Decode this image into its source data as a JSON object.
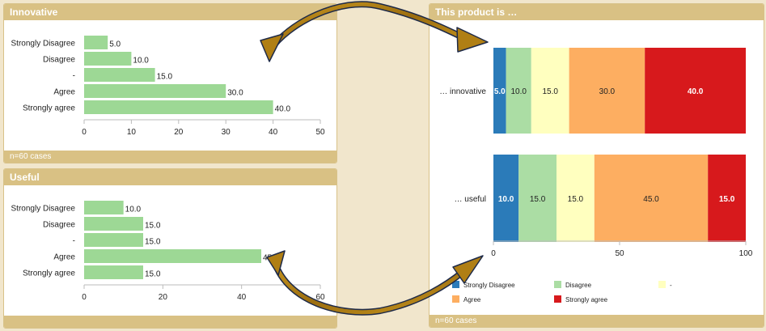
{
  "panels": {
    "innovative": {
      "title": "Innovative",
      "footer": "n=60 cases"
    },
    "useful": {
      "title": "Useful",
      "footer": ""
    },
    "product": {
      "title": "This product is …",
      "footer": "n=60 cases"
    }
  },
  "chart_data": [
    {
      "type": "bar",
      "orientation": "horizontal",
      "title": "Innovative",
      "categories": [
        "Strongly Disagree",
        "Disagree",
        "-",
        "Agree",
        "Strongly agree"
      ],
      "values": [
        5.0,
        10.0,
        15.0,
        30.0,
        40.0
      ],
      "value_labels": [
        "5.0",
        "10.0",
        "15.0",
        "30.0",
        "40.0"
      ],
      "xlim": [
        0,
        50
      ],
      "xticks": [
        0,
        10,
        20,
        30,
        40,
        50
      ],
      "bar_color": "#9dd895",
      "grid": false
    },
    {
      "type": "bar",
      "orientation": "horizontal",
      "title": "Useful",
      "categories": [
        "Strongly Disagree",
        "Disagree",
        "-",
        "Agree",
        "Strongly agree"
      ],
      "values": [
        10.0,
        15.0,
        15.0,
        45.0,
        15.0
      ],
      "value_labels": [
        "10.0",
        "15.0",
        "15.0",
        "45.0",
        "15.0"
      ],
      "xlim": [
        0,
        60
      ],
      "xticks": [
        0,
        20,
        40,
        60
      ],
      "xtick_labels": [
        "0",
        "20",
        "40",
        "60"
      ],
      "bar_color": "#9dd895",
      "grid": false
    },
    {
      "type": "bar",
      "orientation": "horizontal",
      "stacked": true,
      "title": "This product is …",
      "categories": [
        "… innovative",
        "… useful"
      ],
      "series": [
        {
          "name": "Strongly Disagree",
          "values": [
            5.0,
            10.0
          ],
          "labels": [
            "5.0",
            "10.0"
          ],
          "color": "#2b7bb9",
          "text_color": "#ffffff"
        },
        {
          "name": "Disagree",
          "values": [
            10.0,
            15.0
          ],
          "labels": [
            "10.0",
            "15.0"
          ],
          "color": "#abdda4",
          "text_color": "#222222"
        },
        {
          "name": "-",
          "values": [
            15.0,
            15.0
          ],
          "labels": [
            "15.0",
            "15.0"
          ],
          "color": "#ffffbf",
          "text_color": "#222222"
        },
        {
          "name": "Agree",
          "values": [
            30.0,
            45.0
          ],
          "labels": [
            "30.0",
            "45.0"
          ],
          "color": "#fdae61",
          "text_color": "#222222"
        },
        {
          "name": "Strongly agree",
          "values": [
            40.0,
            15.0
          ],
          "labels": [
            "40.0",
            "15.0"
          ],
          "color": "#d7191c",
          "text_color": "#ffffff"
        }
      ],
      "xlim": [
        0,
        100
      ],
      "xticks": [
        0,
        50,
        100
      ],
      "legend": "bottom",
      "grid": false
    }
  ]
}
